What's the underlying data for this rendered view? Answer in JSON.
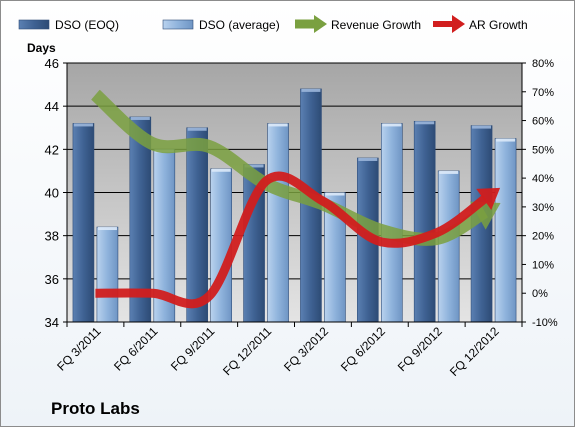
{
  "company_label": "Proto Labs",
  "chart_data": {
    "type": "bar",
    "categories": [
      "FQ 3/2011",
      "FQ 6/2011",
      "FQ 9/2011",
      "FQ 12/2011",
      "FQ 3/2012",
      "FQ 6/2012",
      "FQ 9/2012",
      "FQ 12/2012"
    ],
    "ylabel": "Days",
    "ylim": [
      34,
      46
    ],
    "yticks": [
      "34",
      "36",
      "38",
      "40",
      "42",
      "44",
      "46"
    ],
    "y2lim": [
      -10,
      80
    ],
    "y2ticks": [
      "-10%",
      "0%",
      "10%",
      "20%",
      "30%",
      "40%",
      "50%",
      "60%",
      "70%",
      "80%"
    ],
    "grid": true,
    "legend_position": "top",
    "series": [
      {
        "name": "DSO (EOQ)",
        "type": "bar",
        "axis": "left",
        "color": "#4a6fa0",
        "values": [
          43.2,
          43.5,
          43.0,
          41.3,
          44.8,
          41.6,
          43.3,
          43.1
        ]
      },
      {
        "name": "DSO (average)",
        "type": "bar",
        "axis": "left",
        "color": "#9fc0e4",
        "values": [
          38.4,
          42.0,
          41.1,
          43.2,
          40.0,
          43.2,
          41.0,
          42.5
        ]
      },
      {
        "name": "Revenue Growth",
        "type": "line",
        "axis": "right",
        "unit": "%",
        "color": "#7aa040",
        "values": [
          69,
          52,
          51,
          38,
          31,
          22,
          19,
          30
        ]
      },
      {
        "name": "AR Growth",
        "type": "line",
        "axis": "right",
        "unit": "%",
        "color": "#d11e1e",
        "values": [
          0,
          0,
          -1,
          39,
          32,
          18,
          21,
          35
        ]
      }
    ]
  }
}
